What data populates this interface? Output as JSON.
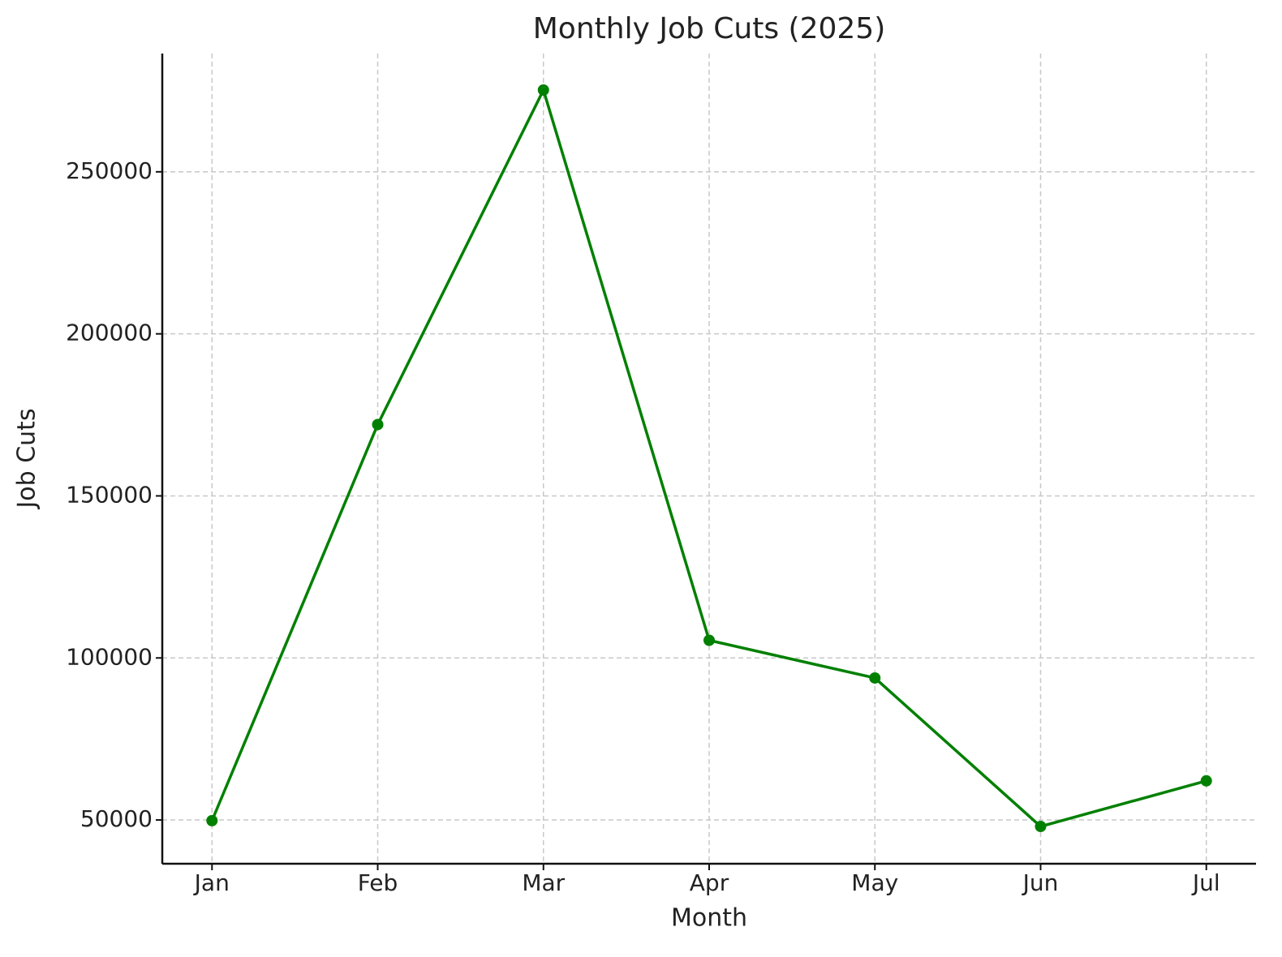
{
  "chart_data": {
    "type": "line",
    "title": "Monthly Job Cuts (2025)",
    "x_label": "Month",
    "y_label": "Job Cuts",
    "categories": [
      "Jan",
      "Feb",
      "Mar",
      "Apr",
      "May",
      "Jun",
      "Jul"
    ],
    "series": [
      {
        "name": "Job Cuts",
        "color": "#008000",
        "values": [
          49795,
          172017,
          275240,
          105441,
          93816,
          47999,
          62075
        ]
      }
    ],
    "ylim": [
      36500,
      286500
    ],
    "yticks": [
      50000,
      100000,
      150000,
      200000,
      250000
    ],
    "grid": true
  }
}
